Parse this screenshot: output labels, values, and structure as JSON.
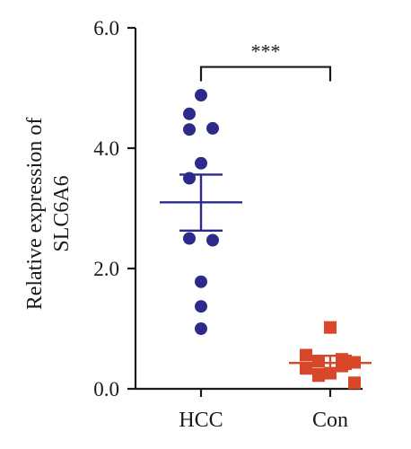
{
  "chart_data": {
    "type": "scatter",
    "ylabel_line1": "Relative expression of",
    "ylabel_line2": "SLC6A6",
    "ylim": [
      0,
      6
    ],
    "yticks": [
      "0.0",
      "2.0",
      "4.0",
      "6.0"
    ],
    "categories": [
      "HCC",
      "Con"
    ],
    "series": [
      {
        "category": "HCC",
        "marker": "circle",
        "color": "#2e2a8a",
        "points": [
          4.88,
          4.57,
          4.31,
          4.33,
          3.75,
          3.5,
          2.5,
          2.47,
          1.78,
          1.37,
          1.0
        ],
        "mean": 3.1,
        "sem_upper": 3.56,
        "sem_lower": 2.63
      },
      {
        "category": "Con",
        "marker": "square",
        "color": "#d9472b",
        "points": [
          1.02,
          0.56,
          0.49,
          0.46,
          0.44,
          0.38,
          0.34,
          0.26,
          0.22,
          0.1
        ],
        "mean": 0.43,
        "sem_upper": 0.55,
        "sem_lower": 0.33
      }
    ],
    "significance": {
      "label": "***",
      "between": [
        "HCC",
        "Con"
      ],
      "y": 5.35
    }
  }
}
